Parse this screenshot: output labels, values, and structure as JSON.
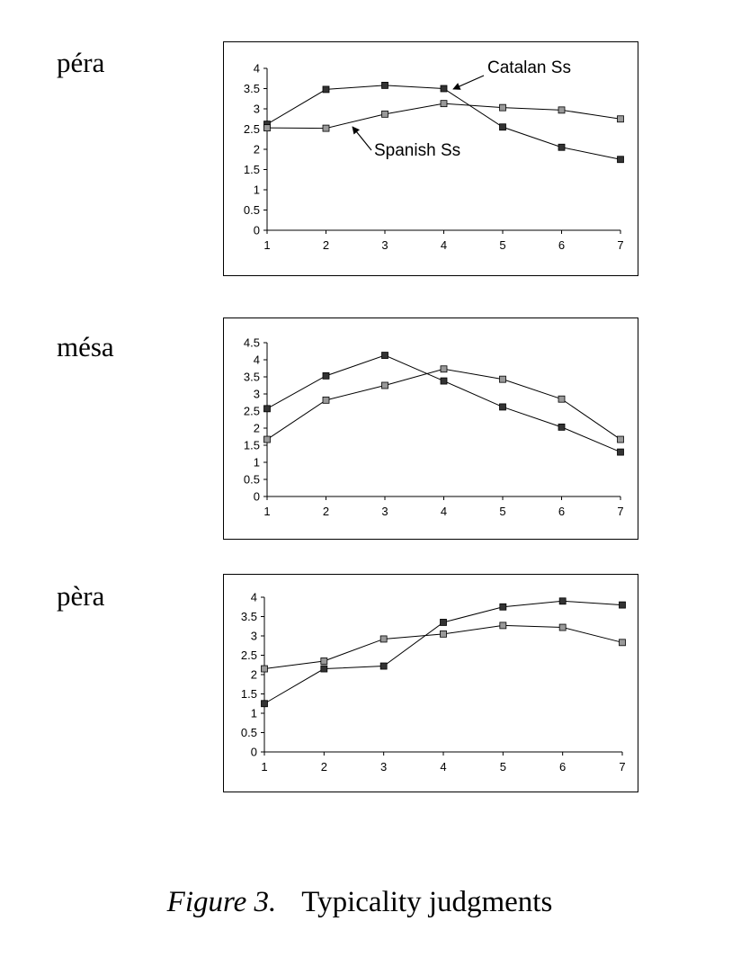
{
  "chart_data": [
    {
      "type": "line",
      "word": "péra",
      "categories": [
        "1",
        "2",
        "3",
        "4",
        "5",
        "6",
        "7"
      ],
      "ylim": [
        0,
        4
      ],
      "yticks": [
        "0",
        "0.5",
        "1",
        "1.5",
        "2",
        "2.5",
        "3",
        "3.5",
        "4"
      ],
      "grid": false,
      "series": [
        {
          "name": "Catalan Ss",
          "color": "#333333",
          "values": [
            2.62,
            3.48,
            3.58,
            3.5,
            2.55,
            2.05,
            1.75
          ]
        },
        {
          "name": "Spanish Ss",
          "color": "#999999",
          "values": [
            2.53,
            2.52,
            2.87,
            3.13,
            3.03,
            2.97,
            2.75
          ]
        }
      ],
      "annotations": [
        {
          "text": "Catalan Ss",
          "series": 0,
          "point": 3
        },
        {
          "text": "Spanish Ss",
          "series": 1,
          "point": 1
        }
      ]
    },
    {
      "type": "line",
      "word": "mésa",
      "categories": [
        "1",
        "2",
        "3",
        "4",
        "5",
        "6",
        "7"
      ],
      "ylim": [
        0,
        4.5
      ],
      "yticks": [
        "0",
        "0.5",
        "1",
        "1.5",
        "2",
        "2.5",
        "3",
        "3.5",
        "4",
        "4.5"
      ],
      "grid": false,
      "series": [
        {
          "color": "#333333",
          "values": [
            2.57,
            3.53,
            4.13,
            3.38,
            2.62,
            2.03,
            1.3
          ]
        },
        {
          "color": "#999999",
          "values": [
            1.67,
            2.82,
            3.25,
            3.73,
            3.43,
            2.85,
            1.67
          ]
        }
      ]
    },
    {
      "type": "line",
      "word": "pèra",
      "categories": [
        "1",
        "2",
        "3",
        "4",
        "5",
        "6",
        "7"
      ],
      "ylim": [
        0,
        4
      ],
      "yticks": [
        "0",
        "0.5",
        "1",
        "1.5",
        "2",
        "2.5",
        "3",
        "3.5",
        "4"
      ],
      "grid": false,
      "series": [
        {
          "color": "#333333",
          "values": [
            1.25,
            2.15,
            2.22,
            3.35,
            3.75,
            3.9,
            3.8
          ]
        },
        {
          "color": "#999999",
          "values": [
            2.15,
            2.35,
            2.92,
            3.05,
            3.27,
            3.22,
            2.83
          ]
        }
      ]
    }
  ],
  "caption": {
    "figure": "Figure 3.",
    "text": "Typicality judgments"
  }
}
